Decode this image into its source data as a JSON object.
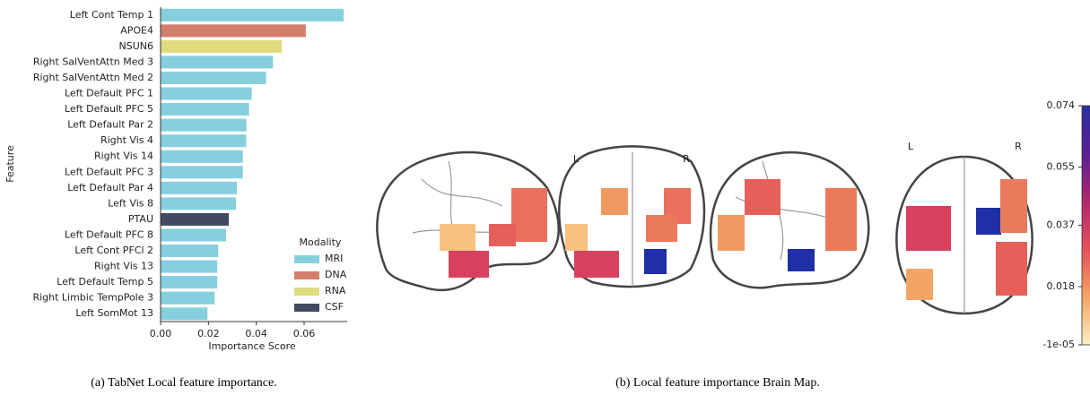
{
  "chart_data": [
    {
      "type": "barh",
      "caption": "(a) TabNet Local feature importance.",
      "xlabel": "Importance Score",
      "ylabel": "Feature",
      "categories": [
        "Left Cont Temp 1",
        "APOE4",
        "NSUN6",
        "Right SalVentAttn Med 3",
        "Right SalVentAttn Med 2",
        "Left Default PFC 1",
        "Left Default PFC 5",
        "Left Default Par 2",
        "Right Vis 4",
        "Right Vis 14",
        "Left Default PFC 3",
        "Left Default Par 4",
        "Left Vis 8",
        "PTAU",
        "Left Default PFC 8",
        "Left Cont PFCl 2",
        "Right Vis 13",
        "Left Default Temp 5",
        "Right Limbic TempPole 3",
        "Left SomMot 13"
      ],
      "values": [
        0.0765,
        0.0607,
        0.0507,
        0.047,
        0.0441,
        0.0381,
        0.037,
        0.0359,
        0.0358,
        0.0344,
        0.0344,
        0.0319,
        0.0315,
        0.0285,
        0.0274,
        0.0241,
        0.0237,
        0.0237,
        0.0226,
        0.0196
      ],
      "colors": [
        "#86d0de",
        "#d17f6b",
        "#dfdc7e",
        "#86d0de",
        "#86d0de",
        "#86d0de",
        "#86d0de",
        "#86d0de",
        "#86d0de",
        "#86d0de",
        "#86d0de",
        "#86d0de",
        "#86d0de",
        "#424a62",
        "#86d0de",
        "#86d0de",
        "#86d0de",
        "#86d0de",
        "#86d0de",
        "#86d0de"
      ],
      "legend": {
        "title": "Modality",
        "entries": [
          {
            "name": "MRI",
            "color": "#86d0de"
          },
          {
            "name": "DNA",
            "color": "#d17f6b"
          },
          {
            "name": "RNA",
            "color": "#dfdc7e"
          },
          {
            "name": "CSF",
            "color": "#424a62"
          }
        ]
      },
      "xlim": [
        0,
        0.078
      ],
      "xticks": [
        {
          "value": 0,
          "label": "0.00"
        },
        {
          "value": 0.02,
          "label": "0.02"
        },
        {
          "value": 0.04,
          "label": "0.04"
        },
        {
          "value": 0.06,
          "label": "0.06"
        }
      ]
    },
    {
      "type": "colorbar",
      "caption": "(b) Local feature importance Brain Map.",
      "orientation_labels": [
        "L",
        "R",
        "L",
        "R"
      ],
      "colors": [
        "#fdf0c2",
        "#f4a565",
        "#e5505a",
        "#b0286d",
        "#5a1f94",
        "#2a2fa0"
      ],
      "ylim": [
        -1e-05,
        0.074
      ],
      "yticks": [
        {
          "value": -1e-05,
          "label": "-1e-05"
        },
        0.018,
        0.037,
        0.055,
        0.074
      ]
    }
  ]
}
